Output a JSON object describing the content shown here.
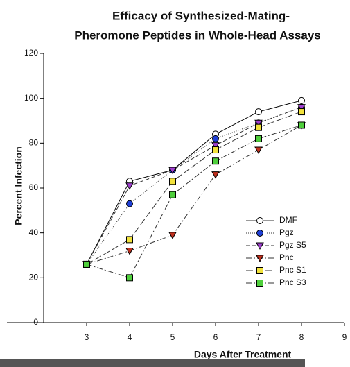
{
  "chart_data": {
    "type": "line",
    "title": [
      "Efficacy of Synthesized-Mating-",
      "Pheromone Peptides in Whole-Head Assays"
    ],
    "x_label": "Days After Treatment",
    "y_label": "Percent Infection",
    "x": [
      3,
      4,
      5,
      6,
      7,
      8
    ],
    "series": [
      {
        "name": "DMF",
        "color": "#000000",
        "marker": "circle-open",
        "dash": "",
        "values": [
          26,
          63,
          68,
          84,
          94,
          99
        ]
      },
      {
        "name": "Pgz",
        "color": "#1f3fd6",
        "marker": "circle",
        "dash": "1 2",
        "values": [
          26,
          53,
          68,
          82,
          89,
          96
        ]
      },
      {
        "name": "Pgz S5",
        "color": "#a040d0",
        "marker": "triangle-down",
        "dash": "6 3",
        "values": [
          26,
          61,
          68,
          79,
          89,
          96
        ]
      },
      {
        "name": "Pnc",
        "color": "#c0301e",
        "marker": "triangle-down",
        "dash": "8 3 2 3",
        "values": [
          26,
          32,
          39,
          66,
          77,
          88
        ]
      },
      {
        "name": "Pnc S1",
        "color": "#f2e23c",
        "marker": "square",
        "dash": "10 4",
        "values": [
          26,
          37,
          63,
          77,
          87,
          94
        ]
      },
      {
        "name": "Pnc S3",
        "color": "#4fcf3c",
        "marker": "square",
        "dash": "8 3 2 3",
        "values": [
          26,
          20,
          57,
          72,
          82,
          88
        ]
      }
    ],
    "xlim": [
      2,
      9
    ],
    "xticks": [
      3,
      4,
      5,
      6,
      7,
      8,
      9
    ],
    "ylim": [
      0,
      120
    ],
    "yticks": [
      0,
      20,
      40,
      60,
      80,
      100,
      120
    ],
    "legend": "right"
  }
}
